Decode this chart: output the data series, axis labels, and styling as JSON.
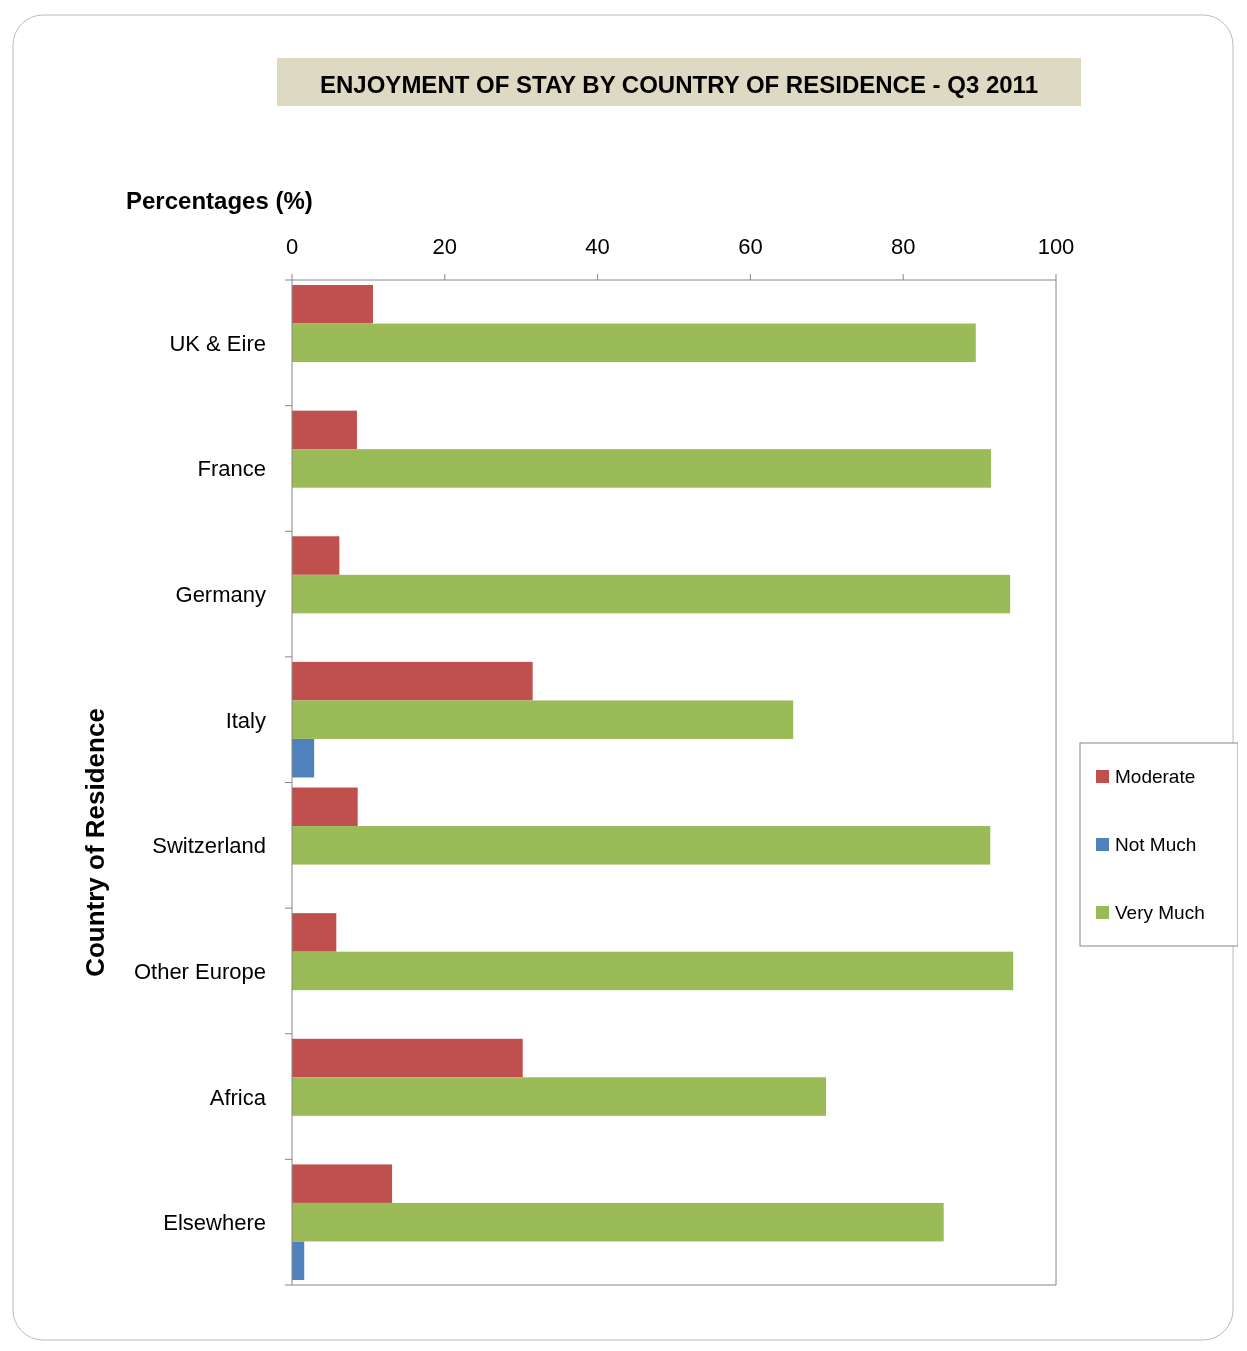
{
  "chart_data": {
    "type": "bar",
    "orientation": "horizontal",
    "title": "ENJOYMENT OF STAY BY COUNTRY OF RESIDENCE - Q3 2011",
    "xlabel": "Percentages (%)",
    "ylabel": "Country of Residence",
    "categories": [
      "UK & Eire",
      "France",
      "Germany",
      "Italy",
      "Switzerland",
      "Other Europe",
      "Africa",
      "Elsewhere"
    ],
    "series": [
      {
        "name": "Moderate",
        "color": "#c0504d",
        "values": [
          10.6,
          8.5,
          6.2,
          31.5,
          8.6,
          5.8,
          30.2,
          13.1
        ]
      },
      {
        "name": "Not Much",
        "color": "#4f81bd",
        "values": [
          0,
          0,
          0,
          2.9,
          0,
          0,
          0,
          1.6
        ]
      },
      {
        "name": "Very Much",
        "color": "#9bbb59",
        "values": [
          89.5,
          91.5,
          94.0,
          65.6,
          91.4,
          94.4,
          69.9,
          85.3
        ]
      }
    ],
    "xlim": [
      0,
      100
    ],
    "xticks": [
      0,
      20,
      40,
      60,
      80,
      100
    ],
    "legend": "right",
    "grid": false
  }
}
